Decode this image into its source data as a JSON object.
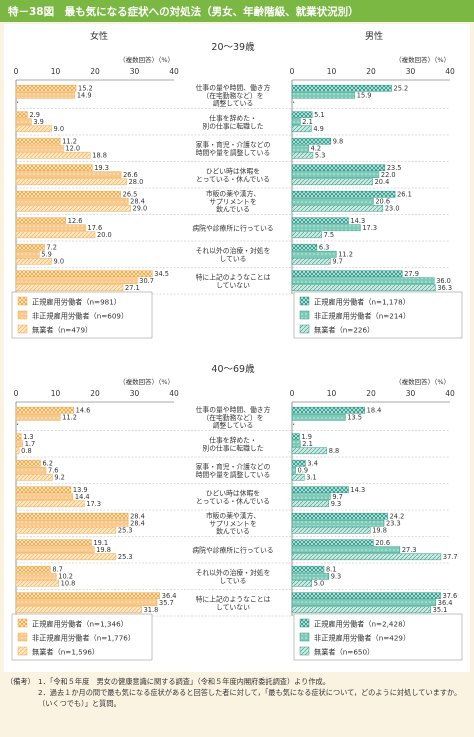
{
  "title": "特－38図　最も気になる症状への対処法（男女、年齢階級、就業状況別）",
  "gender_labels": {
    "female": "女性",
    "male": "男性"
  },
  "unit_note": "（複数回答）（%）",
  "categories": [
    "仕事の量や時間、働き方\n（在宅勤務など）を\n調整している",
    "仕事を辞めた・\n別の仕事に転職した",
    "家事・育児・介護などの\n時間や量を調整している",
    "ひどい時は休暇を\nとっている・休んでいる",
    "市販の薬や漢方、\nサプリメントを\n飲んでいる",
    "病院や診療所に行っている",
    "それ以外の治療・対処を\nしている",
    "特に上記のようなことは\nしていない"
  ],
  "colors": {
    "title_bar": "#7ab843",
    "page_bg": "#fbf3e2",
    "female_regular": "#f4a944",
    "female_nonregular": "#f8c98d",
    "female_unemployed": "#fde7c6",
    "male_regular": "#2b9c8a",
    "male_nonregular": "#7dcbb7",
    "male_unemployed": "#cfe9e0"
  },
  "chart_data": [
    {
      "type": "bar",
      "title": "20～39歳",
      "xlim": [
        0,
        40
      ],
      "xticks": [
        0,
        10,
        20,
        30,
        40
      ],
      "female": {
        "series": [
          {
            "name": "正規雇用労働者（n=981）",
            "values": [
              15.2,
              2.9,
              11.2,
              19.3,
              26.5,
              12.6,
              7.2,
              34.5
            ]
          },
          {
            "name": "非正規雇用労働者（n=609）",
            "values": [
              14.9,
              3.9,
              12.0,
              26.6,
              28.4,
              17.6,
              5.9,
              30.7
            ]
          },
          {
            "name": "無業者（n=479）",
            "values": [
              null,
              9.0,
              18.8,
              28.0,
              29.0,
              20.0,
              9.0,
              27.1
            ]
          }
        ]
      },
      "male": {
        "series": [
          {
            "name": "正規雇用労働者（n=1,178）",
            "values": [
              25.2,
              5.1,
              9.8,
              23.5,
              26.1,
              14.3,
              6.3,
              27.9
            ]
          },
          {
            "name": "非正規雇用労働者（n=214）",
            "values": [
              15.9,
              2.1,
              4.2,
              22.0,
              20.6,
              17.3,
              11.2,
              36.0
            ]
          },
          {
            "name": "無業者（n=226）",
            "values": [
              null,
              4.9,
              5.3,
              20.4,
              23.0,
              7.5,
              9.7,
              36.3
            ]
          }
        ]
      }
    },
    {
      "type": "bar",
      "title": "40～69歳",
      "xlim": [
        0,
        40
      ],
      "xticks": [
        0,
        10,
        20,
        30,
        40
      ],
      "female": {
        "series": [
          {
            "name": "正規雇用労働者（n=1,346）",
            "values": [
              14.6,
              1.3,
              6.2,
              13.9,
              28.4,
              19.1,
              8.7,
              36.4
            ]
          },
          {
            "name": "非正規雇用労働者（n=1,776）",
            "values": [
              11.2,
              1.7,
              7.6,
              14.4,
              28.4,
              19.8,
              10.2,
              35.7
            ]
          },
          {
            "name": "無業者（n=1,596）",
            "values": [
              null,
              0.8,
              9.2,
              17.3,
              25.3,
              25.3,
              10.8,
              31.8
            ]
          }
        ]
      },
      "male": {
        "series": [
          {
            "name": "正規雇用労働者（n=2,428）",
            "values": [
              18.4,
              1.9,
              3.4,
              14.3,
              24.2,
              20.6,
              8.1,
              37.6
            ]
          },
          {
            "name": "非正規雇用労働者（n=429）",
            "values": [
              13.5,
              2.1,
              0.9,
              9.7,
              23.3,
              27.3,
              9.3,
              36.4
            ]
          },
          {
            "name": "無業者（n=650）",
            "values": [
              null,
              8.8,
              3.1,
              9.3,
              19.8,
              37.7,
              5.0,
              35.1
            ]
          }
        ]
      }
    }
  ],
  "notes": [
    {
      "head": "（備考）",
      "body": "1．「令和５年度　男女の健康意識に関する調査」（令和５年度内閣府委託調査）より作成。"
    },
    {
      "head": "",
      "body": "2．過去１か月の間で最も気になる症状があると回答した者に対して，「最も気になる症状について，どのように対処していますか。（いくつでも）」と質問。"
    }
  ]
}
